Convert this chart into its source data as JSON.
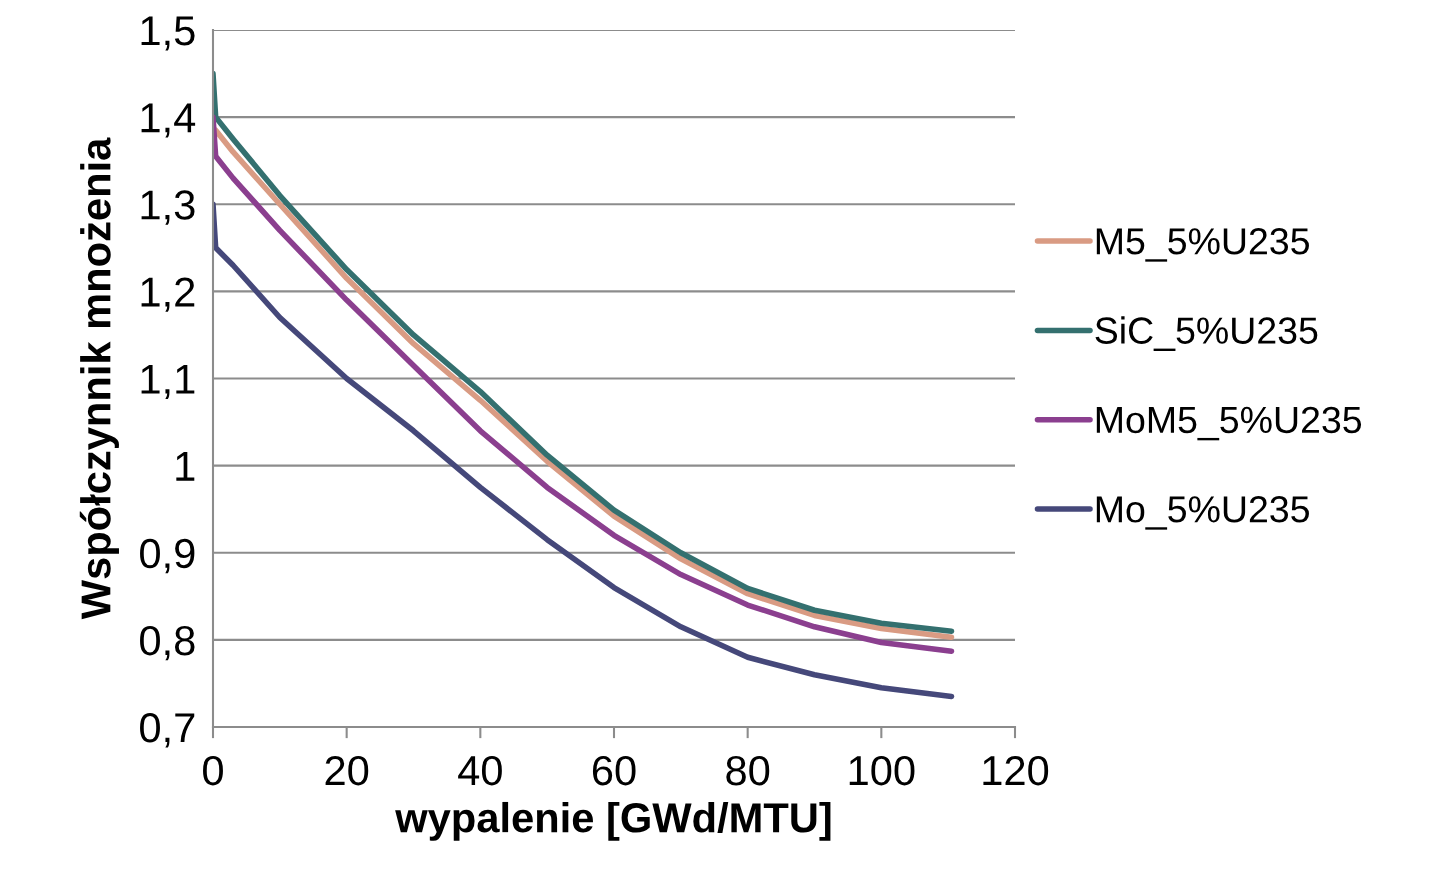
{
  "chart_data": {
    "type": "line",
    "xlabel": "wypalenie [GWd/MTU]",
    "ylabel": "Współczynnik mnożenia",
    "xlim": [
      0,
      120
    ],
    "xticks": [
      0,
      20,
      40,
      60,
      80,
      100,
      120
    ],
    "ylim": [
      0.7,
      1.5
    ],
    "yticks": [
      {
        "value": 0.7,
        "label": "0,7"
      },
      {
        "value": 0.8,
        "label": "0,8"
      },
      {
        "value": 0.9,
        "label": "0,9"
      },
      1,
      {
        "value": 1.1,
        "label": "1,1"
      },
      {
        "value": 1.2,
        "label": "1,2"
      },
      {
        "value": 1.3,
        "label": "1,3"
      },
      {
        "value": 1.4,
        "label": "1,4"
      },
      {
        "value": 1.5,
        "label": "1,5"
      }
    ],
    "grid": "y",
    "legend": "right",
    "marker": "none",
    "line_style": "solid",
    "x": [
      0,
      0.4,
      3,
      10,
      20,
      30,
      40,
      50,
      60,
      70,
      80,
      90,
      100,
      110.5
    ],
    "series": [
      {
        "name": "M5_5%U235",
        "color": "#d99b83",
        "values": [
          null,
          1.385,
          1.36,
          1.3,
          1.215,
          1.14,
          1.075,
          1.005,
          0.942,
          0.893,
          0.853,
          0.828,
          0.813,
          0.803
        ]
      },
      {
        "name": "SiC_5%U235",
        "color": "#34706f",
        "values": [
          1.45,
          1.4,
          1.375,
          1.31,
          1.225,
          1.15,
          1.085,
          1.012,
          0.949,
          0.9,
          0.859,
          0.834,
          0.819,
          0.81
        ]
      },
      {
        "name": "MoM5_5%U235",
        "color": "#8b3f8f",
        "values": [
          1.4,
          1.355,
          1.33,
          1.27,
          1.19,
          1.115,
          1.04,
          0.975,
          0.92,
          0.875,
          0.84,
          0.815,
          0.797,
          0.787
        ]
      },
      {
        "name": "Mo_5%U235",
        "color": "#45487a",
        "values": [
          1.3,
          1.25,
          1.23,
          1.17,
          1.1,
          1.04,
          0.975,
          0.915,
          0.86,
          0.815,
          0.78,
          0.76,
          0.745,
          0.735
        ]
      }
    ]
  }
}
